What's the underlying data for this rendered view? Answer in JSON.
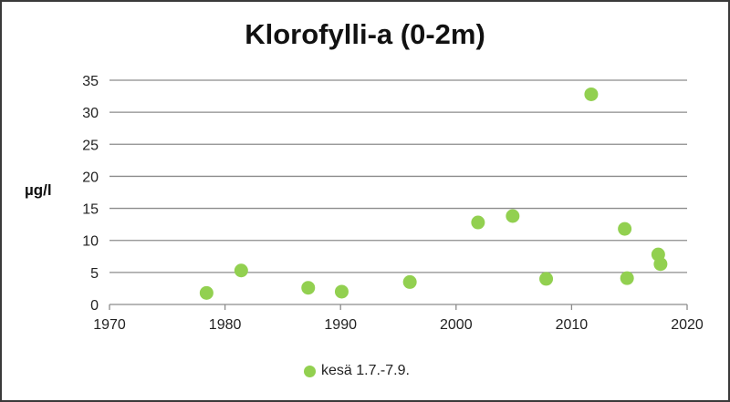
{
  "chart_data": {
    "type": "scatter",
    "title": "Klorofylli-a (0-2m)",
    "ylabel": "µg/l",
    "xlabel": "",
    "xlim": [
      1970,
      2020
    ],
    "ylim": [
      0,
      35
    ],
    "xticks": [
      1970,
      1980,
      1990,
      2000,
      2010,
      2020
    ],
    "yticks": [
      0,
      5,
      10,
      15,
      20,
      25,
      30,
      35
    ],
    "grid": "horizontal",
    "legend_position": "bottom",
    "series": [
      {
        "name": "kesä 1.7.-7.9.",
        "color": "#92d050",
        "points": [
          {
            "x": 1978.4,
            "y": 1.8
          },
          {
            "x": 1981.4,
            "y": 5.3
          },
          {
            "x": 1987.2,
            "y": 2.6
          },
          {
            "x": 1990.1,
            "y": 2.0
          },
          {
            "x": 1996.0,
            "y": 3.5
          },
          {
            "x": 2001.9,
            "y": 12.8
          },
          {
            "x": 2004.9,
            "y": 13.8
          },
          {
            "x": 2007.8,
            "y": 4.0
          },
          {
            "x": 2011.7,
            "y": 32.8
          },
          {
            "x": 2014.6,
            "y": 11.8
          },
          {
            "x": 2014.8,
            "y": 4.1
          },
          {
            "x": 2017.5,
            "y": 7.8
          },
          {
            "x": 2017.7,
            "y": 6.3
          }
        ]
      }
    ]
  }
}
